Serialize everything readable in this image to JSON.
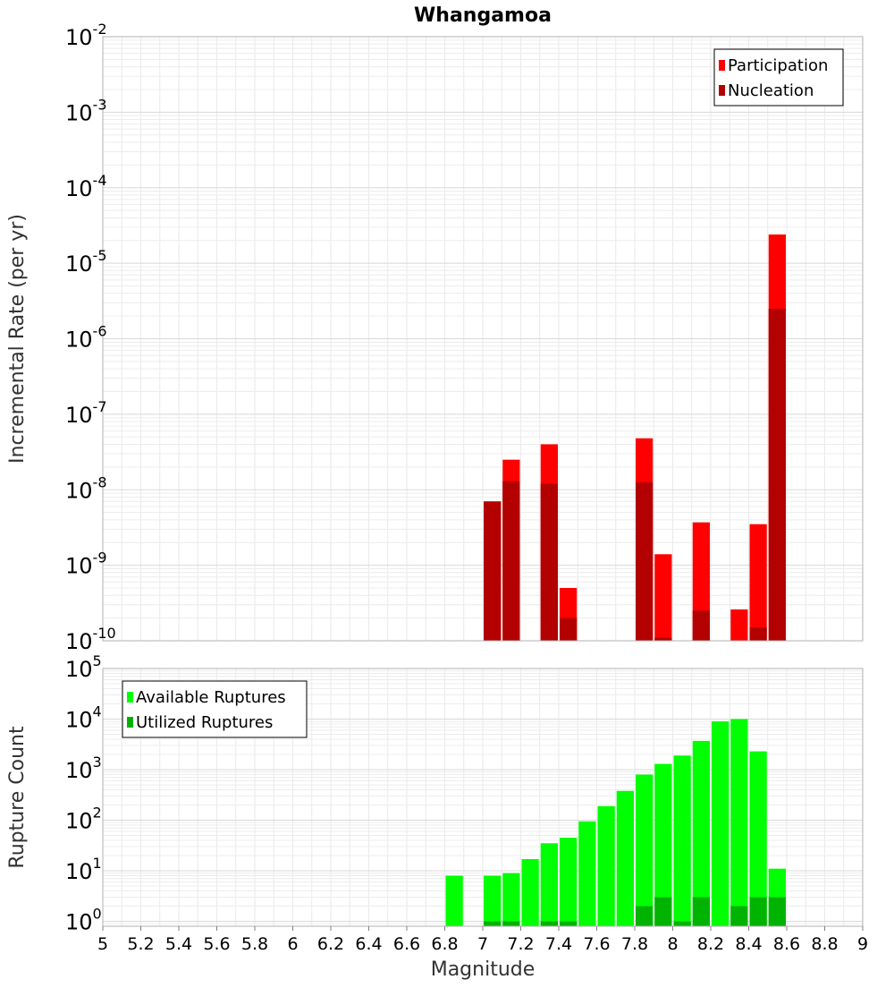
{
  "chart_data": [
    {
      "type": "bar",
      "title": "Whangamoa",
      "xlabel": "",
      "ylabel": "Incremental Rate (per yr)",
      "yscale": "log",
      "xlim": [
        5,
        9
      ],
      "ylim": [
        1e-10,
        0.01
      ],
      "ytick_exponents": [
        -10,
        -9,
        -8,
        -7,
        -6,
        -5,
        -4,
        -3,
        -2
      ],
      "grid": true,
      "legend_position": "top-right",
      "colors": {
        "Participation": "#ff0000",
        "Nucleation": "#b30000"
      },
      "bin_width": 0.1,
      "series": [
        {
          "name": "Participation",
          "x": [
            7.05,
            7.15,
            7.35,
            7.45,
            7.85,
            7.95,
            8.15,
            8.35,
            8.45,
            8.55
          ],
          "values": [
            7e-09,
            2.5e-08,
            4e-08,
            5e-10,
            4.8e-08,
            1.4e-09,
            3.7e-09,
            2.6e-10,
            3.5e-09,
            2.4e-05
          ]
        },
        {
          "name": "Nucleation",
          "x": [
            7.05,
            7.15,
            7.35,
            7.45,
            7.85,
            7.95,
            8.15,
            8.45,
            8.55
          ],
          "values": [
            7e-09,
            1.3e-08,
            1.2e-08,
            2e-10,
            1.25e-08,
            1.1e-10,
            2.5e-10,
            1.5e-10,
            2.5e-06
          ]
        }
      ]
    },
    {
      "type": "bar",
      "title": "",
      "xlabel": "Magnitude",
      "ylabel": "Rupture Count",
      "yscale": "log",
      "xlim": [
        5,
        9
      ],
      "ylim": [
        0.8,
        100000.0
      ],
      "ytick_exponents": [
        0,
        1,
        2,
        3,
        4,
        5
      ],
      "xticks": [
        "5",
        "5.2",
        "5.4",
        "5.6",
        "5.8",
        "6",
        "6.2",
        "6.4",
        "6.6",
        "6.8",
        "7",
        "7.2",
        "7.4",
        "7.6",
        "7.8",
        "8",
        "8.2",
        "8.4",
        "8.6",
        "8.8",
        "9"
      ],
      "grid": true,
      "legend_position": "top-left",
      "colors": {
        "Available Ruptures": "#00ff00",
        "Utilized Ruptures": "#00b300"
      },
      "bin_width": 0.1,
      "series": [
        {
          "name": "Available Ruptures",
          "x": [
            6.85,
            7.05,
            7.15,
            7.25,
            7.35,
            7.45,
            7.55,
            7.65,
            7.75,
            7.85,
            7.95,
            8.05,
            8.15,
            8.25,
            8.35,
            8.45,
            8.55
          ],
          "values": [
            8,
            8,
            9,
            17,
            35,
            45,
            95,
            190,
            380,
            800,
            1300,
            1900,
            3700,
            9000,
            10000,
            2300,
            11
          ]
        },
        {
          "name": "Utilized Ruptures",
          "x": [
            7.05,
            7.15,
            7.35,
            7.45,
            7.85,
            7.95,
            8.05,
            8.15,
            8.35,
            8.45,
            8.55
          ],
          "values": [
            1,
            1,
            1,
            1,
            2,
            3,
            1,
            3,
            2,
            3,
            3
          ]
        }
      ]
    }
  ]
}
